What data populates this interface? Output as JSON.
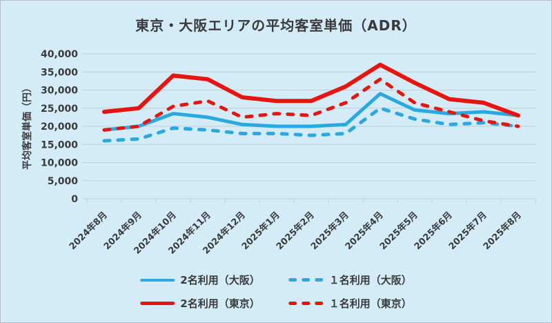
{
  "title": "東京・大阪エリアの平均客室単価（ADR）",
  "y_axis_title": "平均客室単価（円）",
  "colors": {
    "background": "#d3ecf8",
    "red": "#e8150f",
    "blue": "#29a9e0",
    "text": "#3a3a3a",
    "grid": "#c5cdd2"
  },
  "chart_data": {
    "type": "line",
    "title": "東京・大阪エリアの平均客室単価（ADR）",
    "xlabel": "",
    "ylabel": "平均客室単価（円）",
    "ylim": [
      0,
      40000
    ],
    "ytick_step": 5000,
    "grid": true,
    "legend_position": "bottom",
    "categories": [
      "2024年8月",
      "2024年9月",
      "2024年10月",
      "2024年11月",
      "2024年12月",
      "2025年1月",
      "2025年2月",
      "2025年3月",
      "2025年4月",
      "2025年5月",
      "2025年6月",
      "2025年7月",
      "2025年8月"
    ],
    "series": [
      {
        "name": "2名利用（大阪）",
        "color": "#29a9e0",
        "style": "solid",
        "values": [
          19000,
          20000,
          23500,
          22500,
          20500,
          20000,
          20000,
          20500,
          29000,
          24500,
          23500,
          24000,
          23000
        ]
      },
      {
        "name": "１名利用（大阪）",
        "color": "#29a9e0",
        "style": "dashed",
        "values": [
          16000,
          16500,
          19500,
          19000,
          18000,
          18000,
          17500,
          18000,
          25000,
          22000,
          20500,
          21000,
          20000
        ]
      },
      {
        "name": "2名利用（東京）",
        "color": "#e8150f",
        "style": "solid",
        "values": [
          24000,
          25000,
          34000,
          33000,
          28000,
          27000,
          27000,
          31000,
          37000,
          32000,
          27500,
          26500,
          23000
        ]
      },
      {
        "name": "１名利用（東京）",
        "color": "#e8150f",
        "style": "dashed",
        "values": [
          19000,
          20000,
          25500,
          27000,
          22500,
          23500,
          23000,
          26500,
          33000,
          26500,
          24000,
          21500,
          20000
        ]
      }
    ]
  }
}
